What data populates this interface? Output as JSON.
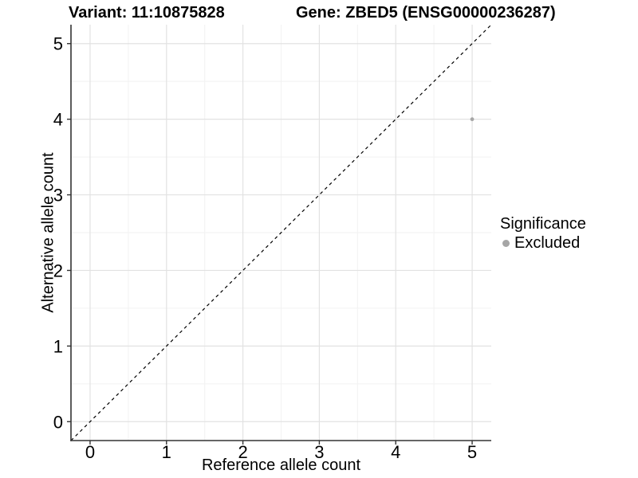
{
  "chart_data": {
    "type": "scatter",
    "titles": {
      "variant": "Variant: 11:10875828",
      "gene": "Gene: ZBED5 (ENSG00000236287)"
    },
    "xlabel": "Reference allele count",
    "ylabel": "Alternative allele count",
    "xlim": [
      -0.25,
      5.25
    ],
    "ylim": [
      -0.25,
      5.25
    ],
    "x_ticks": [
      0,
      1,
      2,
      3,
      4,
      5
    ],
    "y_ticks": [
      0,
      1,
      2,
      3,
      4,
      5
    ],
    "grid": "major gridlines at integers, minor gridlines at half-integers",
    "legend": {
      "title": "Significance",
      "position": "right",
      "items": [
        {
          "label": "Excluded",
          "color": "#a6a6a6"
        }
      ]
    },
    "series": [
      {
        "name": "Excluded",
        "color": "#a6a6a6",
        "points": [
          {
            "x": 5,
            "y": 4
          }
        ]
      }
    ],
    "reference_line": {
      "slope": 1,
      "intercept": 0,
      "style": "dashed",
      "color": "#000000"
    },
    "colors": {
      "grid_major": "#e2e2e2",
      "grid_minor": "#f2f2f2",
      "axis": "#333333",
      "tick_label": "#000000",
      "background": "#ffffff"
    }
  }
}
